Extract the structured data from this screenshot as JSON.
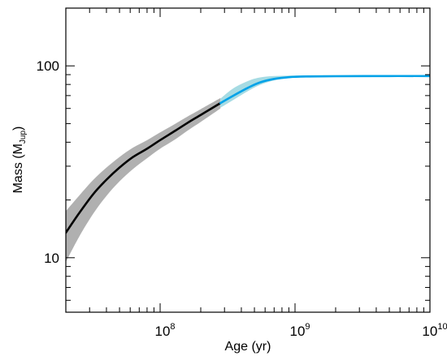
{
  "chart_data": {
    "type": "line",
    "title": "",
    "xlabel": "Age (yr)",
    "ylabel": {
      "prefix": "Mass (M",
      "subscript": "Jup",
      "suffix": ")"
    },
    "x_scale": "log",
    "y_scale": "log",
    "xlim": [
      20000000,
      10000000000
    ],
    "ylim": [
      5.2,
      200
    ],
    "x_ticks": [
      {
        "value": 100000000,
        "base": "10",
        "exp": "8"
      },
      {
        "value": 1000000000,
        "base": "10",
        "exp": "9"
      },
      {
        "value": 10000000000,
        "base": "10",
        "exp": "10"
      }
    ],
    "y_ticks": [
      {
        "value": 10,
        "label": "10"
      },
      {
        "value": 100,
        "label": "100"
      }
    ],
    "grid": false,
    "series": [
      {
        "color": "#000000",
        "band_color": "#b0b0b0",
        "points": [
          {
            "x": 20000000,
            "y": 13.5,
            "lo": 9.5,
            "hi": 17.5
          },
          {
            "x": 25000000,
            "y": 17.0,
            "lo": 12.8,
            "hi": 21.0
          },
          {
            "x": 32000000,
            "y": 21.5,
            "lo": 17.0,
            "hi": 25.5
          },
          {
            "x": 40000000,
            "y": 25.5,
            "lo": 21.0,
            "hi": 29.5
          },
          {
            "x": 50000000,
            "y": 29.5,
            "lo": 25.0,
            "hi": 33.5
          },
          {
            "x": 63000000,
            "y": 33.5,
            "lo": 29.0,
            "hi": 37.5
          },
          {
            "x": 80000000,
            "y": 37.0,
            "lo": 33.0,
            "hi": 41.0
          },
          {
            "x": 100000000,
            "y": 41.0,
            "lo": 37.0,
            "hi": 45.0
          },
          {
            "x": 130000000,
            "y": 46.0,
            "lo": 41.5,
            "hi": 50.0
          },
          {
            "x": 160000000,
            "y": 50.5,
            "lo": 46.0,
            "hi": 54.5
          },
          {
            "x": 200000000,
            "y": 55.5,
            "lo": 51.0,
            "hi": 59.5
          },
          {
            "x": 280000000,
            "y": 64.0,
            "lo": 60.0,
            "hi": 68.0
          }
        ]
      },
      {
        "color": "#00a2e8",
        "band_color": "#a6dbe3",
        "points": [
          {
            "x": 280000000,
            "y": 64.0,
            "lo": 60.5,
            "hi": 67.5
          },
          {
            "x": 350000000,
            "y": 70.0,
            "lo": 66.5,
            "hi": 76.5
          },
          {
            "x": 450000000,
            "y": 77.0,
            "lo": 74.0,
            "hi": 83.5
          },
          {
            "x": 550000000,
            "y": 82.0,
            "lo": 79.5,
            "hi": 87.0
          },
          {
            "x": 700000000,
            "y": 85.5,
            "lo": 84.0,
            "hi": 88.5
          },
          {
            "x": 900000000,
            "y": 87.3,
            "lo": 86.3,
            "hi": 89.0
          },
          {
            "x": 1200000000,
            "y": 88.0,
            "lo": 87.0,
            "hi": 89.3
          },
          {
            "x": 2000000000,
            "y": 88.3,
            "lo": 87.3,
            "hi": 89.5
          },
          {
            "x": 5000000000,
            "y": 88.5,
            "lo": 87.5,
            "hi": 89.6
          },
          {
            "x": 10000000000,
            "y": 88.5,
            "lo": 87.5,
            "hi": 89.6
          }
        ]
      }
    ]
  }
}
